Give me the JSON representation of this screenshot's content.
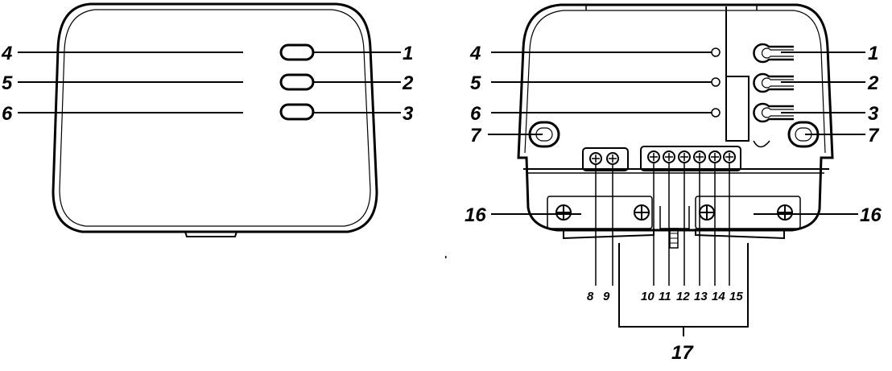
{
  "front_view": {
    "left_labels": [
      "4",
      "5",
      "6"
    ],
    "right_labels": [
      "1",
      "2",
      "3"
    ]
  },
  "back_view": {
    "left_labels": [
      "4",
      "5",
      "6",
      "7"
    ],
    "right_labels": [
      "1",
      "2",
      "3",
      "7"
    ],
    "screw_cover_labels": [
      "16",
      "16"
    ],
    "terminal_labels": [
      "8",
      "9",
      "10",
      "11",
      "12",
      "13",
      "14",
      "15"
    ],
    "bracket_label": "17"
  }
}
